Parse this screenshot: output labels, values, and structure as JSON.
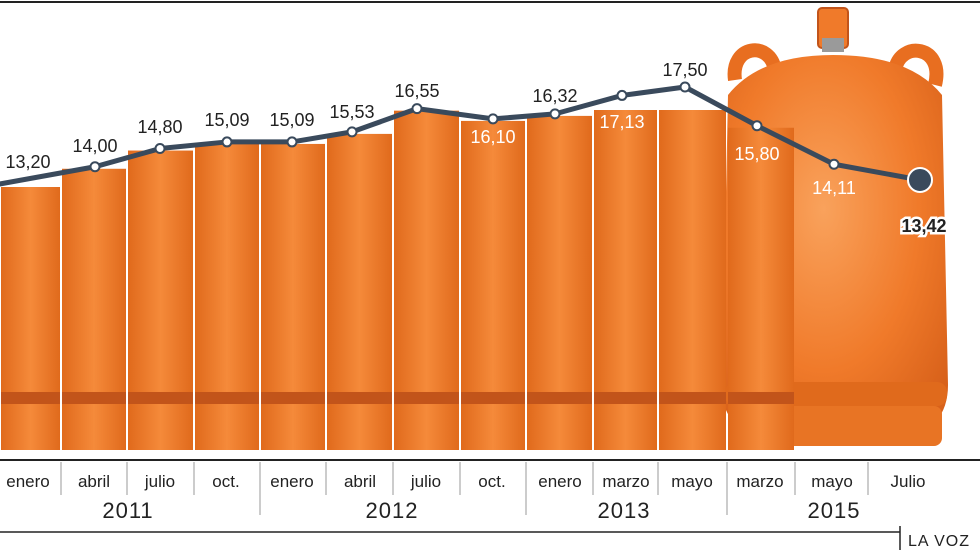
{
  "chart_data": {
    "type": "line",
    "categories": [
      "enero",
      "abril",
      "julio",
      "oct.",
      "enero",
      "abril",
      "julio",
      "oct.",
      "enero",
      "marzo",
      "mayo",
      "marzo",
      "mayo",
      "Julio"
    ],
    "values": [
      13.2,
      14.0,
      14.8,
      15.09,
      15.09,
      15.53,
      16.55,
      16.1,
      16.32,
      17.13,
      17.5,
      15.8,
      14.11,
      13.42
    ],
    "value_labels": [
      "13,20",
      "14,00",
      "14,80",
      "15,09",
      "15,09",
      "15,53",
      "16,55",
      "16,10",
      "16,32",
      "17,13",
      "17,50",
      "15,80",
      "14,11",
      "13,42"
    ],
    "years": [
      {
        "label": "2011",
        "from": 0,
        "to": 3
      },
      {
        "label": "2012",
        "from": 4,
        "to": 7
      },
      {
        "label": "2013",
        "from": 8,
        "to": 10
      },
      {
        "label": "2015",
        "from": 11,
        "to": 13
      }
    ],
    "line_color": "#3a4a5c",
    "bar_color": "#f07a2a",
    "highlight_last": true
  },
  "source": "LA VOZ"
}
